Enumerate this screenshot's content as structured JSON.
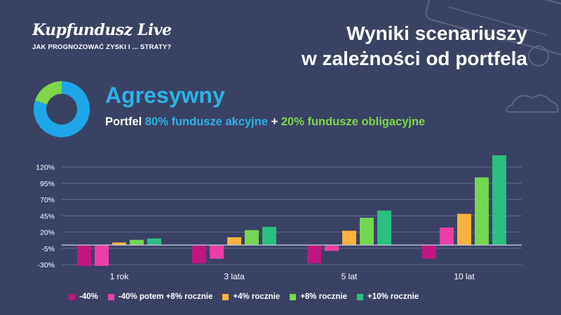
{
  "brand": {
    "logo": "Kupfundusz Live",
    "tagline": "JAK PROGNOZOWAĆ ZYSKI I ... STRATY?"
  },
  "headline": {
    "line1": "Wyniki scenariuszy",
    "line2": "w zależności od portfela"
  },
  "portfolio": {
    "name": "Agresywny",
    "prefix": "Portfel",
    "stocks": "80% fundusze akcyjne",
    "plus": "+",
    "bonds": "20% fundusze obligacyjne",
    "stocks_share": 0.8,
    "bonds_share": 0.2
  },
  "colors": {
    "background": "#3a4264",
    "stocks": "#1ea7e8",
    "bonds": "#7fd64a"
  },
  "chart_data": {
    "type": "bar",
    "categories": [
      "1 rok",
      "3 lata",
      "5 lat",
      "10 lat"
    ],
    "yticks": [
      "120%",
      "95%",
      "70%",
      "45%",
      "20%",
      "-5%",
      "-30%"
    ],
    "ylim": [
      -30,
      140
    ],
    "baseline": 0,
    "grid": "horizontal",
    "legend_position": "bottom",
    "series": [
      {
        "name": "-40%",
        "color": "#c2167f",
        "values": [
          -32,
          -28,
          -28,
          -21
        ]
      },
      {
        "name": "-40% potem +8% rocznie",
        "color": "#ec3ea6",
        "values": [
          -32,
          -21,
          -9,
          27
        ]
      },
      {
        "name": "+4% rocznie",
        "color": "#fbb33c",
        "values": [
          4,
          12,
          22,
          48
        ]
      },
      {
        "name": "+8% rocznie",
        "color": "#74d750",
        "values": [
          8,
          23,
          42,
          104
        ]
      },
      {
        "name": "+10% rocznie",
        "color": "#2bbf80",
        "values": [
          10,
          28,
          53,
          138
        ]
      }
    ]
  }
}
